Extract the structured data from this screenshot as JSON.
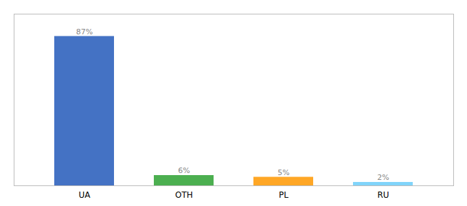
{
  "chart_data": {
    "type": "bar",
    "categories": [
      "UA",
      "OTH",
      "PL",
      "RU"
    ],
    "values": [
      87,
      6,
      5,
      2
    ],
    "value_labels": [
      "87%",
      "6%",
      "5%",
      "2%"
    ],
    "colors": [
      "#4472C4",
      "#4CAF50",
      "#FFA726",
      "#81D4FA"
    ],
    "ylim": [
      0,
      100
    ],
    "data_labels": true,
    "tick_labels": "x"
  }
}
